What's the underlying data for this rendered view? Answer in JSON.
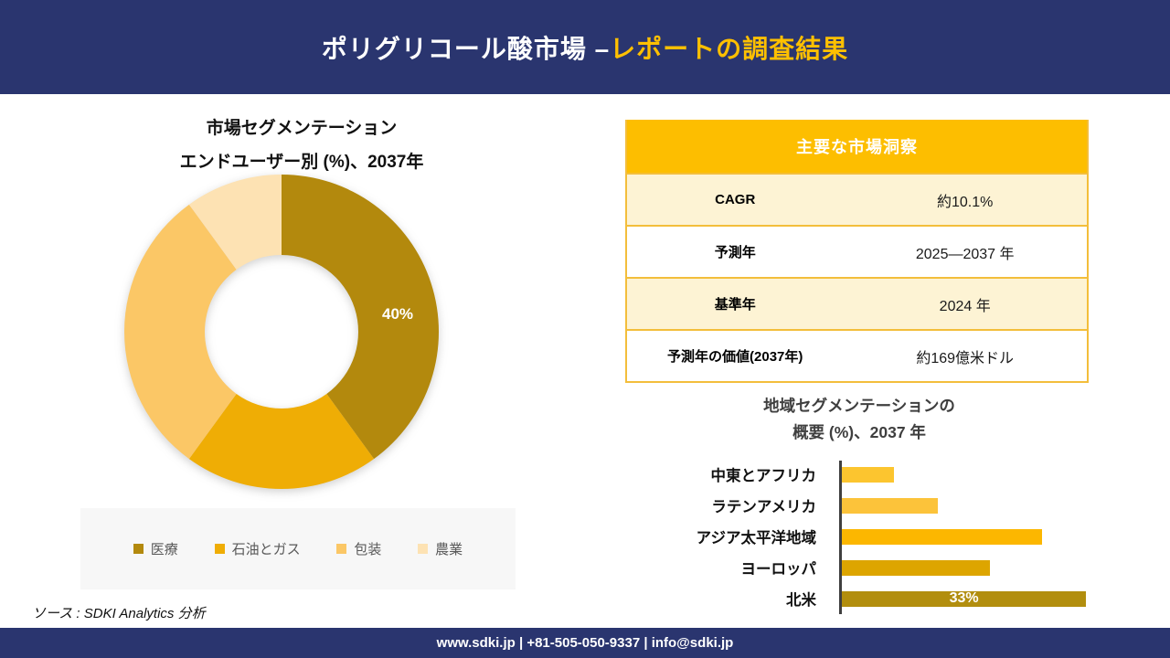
{
  "colors": {
    "navy": "#2A356F",
    "accent_yellow": "#FFC000",
    "table_header_bg": "#FDBE00",
    "table_row_cream": "#FDF3D4",
    "table_border": "#F3BE3B",
    "legend_bg": "#F7F7F7",
    "axis_gray": "#3F3F3F"
  },
  "header": {
    "title_main": "ポリグリコール酸市場 –",
    "title_accent": "レポートの調査結果"
  },
  "donut_section": {
    "title_line1": "市場セグメンテーション",
    "title_line2": "エンドユーザー別 (%)、2037年"
  },
  "insights_table": {
    "title": "主要な市場洞察",
    "rows": [
      {
        "label": "CAGR",
        "value": "約10.1%"
      },
      {
        "label": "予測年",
        "value": "2025—2037 年"
      },
      {
        "label": "基準年",
        "value": "2024 年"
      },
      {
        "label": "予測年の価値(2037年)",
        "value": "約169億米ドル"
      }
    ]
  },
  "bar_section": {
    "title_line1": "地域セグメンテーションの",
    "title_line2": "概要 (%)、2037 年"
  },
  "source_note": "ソース : SDKI Analytics 分析",
  "footer": {
    "text": "www.sdki.jp | +81-505-050-9337 | info@sdki.jp"
  },
  "chart_data": [
    {
      "type": "pie",
      "subtype": "donut",
      "title": "市場セグメンテーション エンドユーザー別 (%)、2037年",
      "labels": [
        "医療",
        "石油とガス",
        "包装",
        "農業"
      ],
      "values": [
        40,
        20,
        30,
        10
      ],
      "colors": [
        "#B3890D",
        "#EFAD05",
        "#FBC766",
        "#FDE2B3"
      ],
      "value_labels": [
        "40%",
        "",
        "",
        ""
      ],
      "legend_position": "bottom"
    },
    {
      "type": "bar",
      "orientation": "horizontal",
      "title": "地域セグメンテーションの 概要 (%)、2037 年",
      "categories": [
        "中東とアフリカ",
        "ラテンアメリカ",
        "アジア太平洋地域",
        "ヨーロッパ",
        "北米"
      ],
      "values": [
        7,
        13,
        27,
        20,
        33
      ],
      "colors": [
        "#FCC52F",
        "#FCC33A",
        "#FCB700",
        "#DDA500",
        "#B28E0E"
      ],
      "value_labels": [
        "",
        "",
        "",
        "",
        "33%"
      ],
      "xlim": [
        0,
        35
      ],
      "grid": false,
      "legend": false
    }
  ]
}
